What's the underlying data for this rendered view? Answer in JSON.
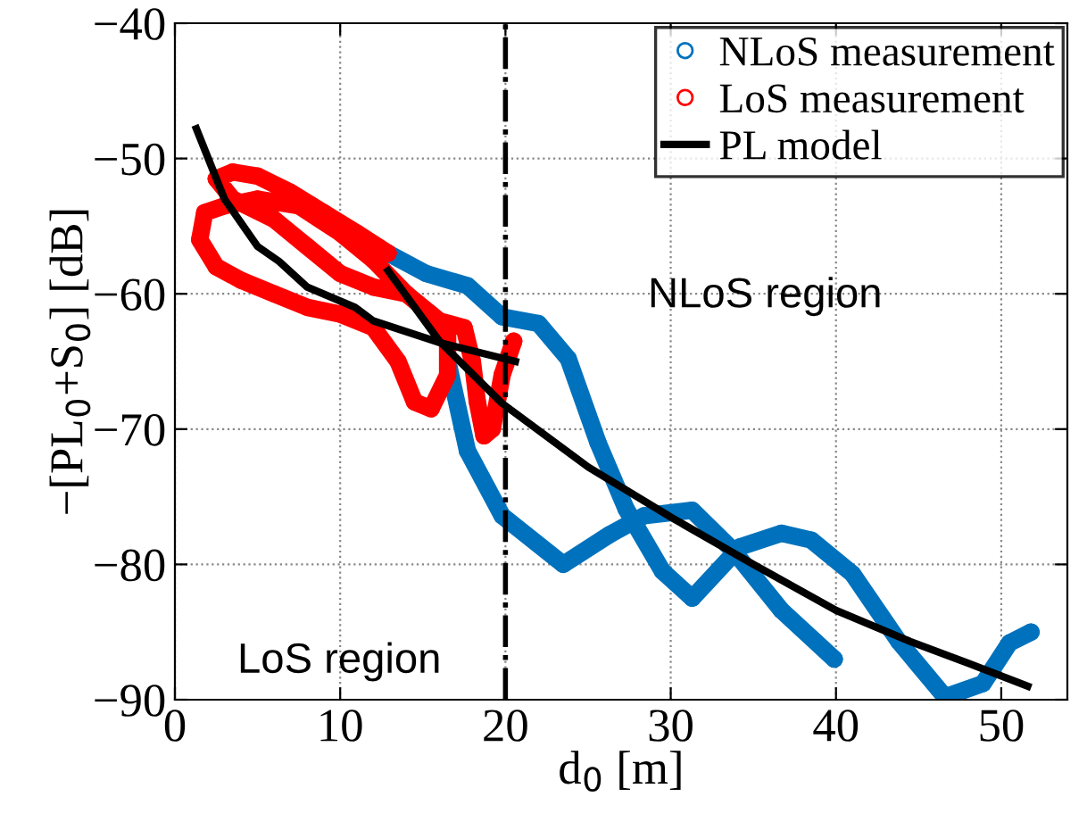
{
  "chart_data": {
    "type": "line",
    "xlabel": "d$_{0}$ [m]",
    "ylabel": "−[PL$_{0}$+S$_{0}$] [dB]",
    "xlim": [
      0,
      54
    ],
    "ylim": [
      -90,
      -40
    ],
    "xticks": [
      0,
      10,
      20,
      30,
      40,
      50
    ],
    "yticks": [
      -90,
      -80,
      -70,
      -60,
      -50,
      -40
    ],
    "grid": true,
    "legend": "top right",
    "marker": "circle",
    "series": [
      {
        "name": "NLoS measurement",
        "color": "#0072bd",
        "x": [
          12.9,
          15.2,
          17.7,
          19.8,
          22,
          23.8,
          25.6,
          27.3,
          29.5,
          31.3,
          34.2,
          36.7,
          38.5,
          41,
          43.8,
          46.6,
          48.9,
          50.5,
          51.8,
          null,
          16.6,
          17.7,
          19.8,
          23.5,
          26.3,
          28.4,
          31.3,
          33.8,
          36.7,
          39.9
        ],
        "values": [
          -57,
          -58.5,
          -59.4,
          -61.7,
          -62.2,
          -64.8,
          -71,
          -75.9,
          -80.5,
          -82.5,
          -78.7,
          -77.7,
          -78.2,
          -80.7,
          -85.7,
          -89.8,
          -88.8,
          -85.8,
          -85,
          null,
          -65.5,
          -71.6,
          -76.4,
          -80,
          -77.8,
          -76.4,
          -76,
          -79,
          -83.4,
          -87
        ]
      },
      {
        "name": "LoS measurement",
        "color": "#ff0000",
        "x": [
          12.9,
          11,
          9,
          7,
          5,
          3.5,
          2.5,
          3.5,
          6,
          8,
          10,
          12,
          14,
          15.5,
          16.5,
          16.5,
          15.5,
          14.5,
          13.5,
          12,
          10,
          8,
          6,
          4,
          2.5,
          1.5,
          1.8,
          3,
          5,
          7.5,
          10,
          12,
          14,
          16,
          17.5,
          18,
          18.3,
          18.7,
          19.2,
          19.8,
          20.5
        ],
        "values": [
          -57,
          -55.5,
          -54,
          -52.5,
          -51.3,
          -51,
          -51.5,
          -53,
          -54.5,
          -56.5,
          -58.5,
          -59.5,
          -60,
          -61.5,
          -63,
          -66,
          -68.5,
          -68,
          -65,
          -62.5,
          -61.5,
          -61,
          -60,
          -59,
          -58,
          -56,
          -54,
          -53.5,
          -53,
          -53.5,
          -55.5,
          -57.5,
          -60,
          -62,
          -62.5,
          -65,
          -68,
          -70.5,
          -70,
          -66,
          -63.5
        ]
      },
      {
        "name": "PL model",
        "color": "#000000",
        "type": "line",
        "marker": "none",
        "x": [
          1.3,
          3,
          5,
          6.3,
          8,
          10.9,
          12,
          16,
          20.6
        ],
        "values": [
          -47.8,
          -53,
          -56.5,
          -57.6,
          -59.5,
          -61,
          -62,
          -63.6,
          -65
        ]
      },
      {
        "color": "#000000",
        "type": "line",
        "marker": "none",
        "x": [
          12.9,
          16,
          19.8,
          25,
          30,
          35,
          40,
          44.5,
          48,
          51.6
        ],
        "values": [
          -58.3,
          -63.5,
          -68.1,
          -72.8,
          -76.5,
          -80,
          -83.4,
          -85.7,
          -87.3,
          -89
        ]
      }
    ],
    "ref_lines": [
      {
        "axis": "x",
        "value": 20,
        "color": "#000000",
        "line_style": "dashdot"
      }
    ],
    "annotations": [
      "LoS region",
      "NLoS region"
    ]
  }
}
